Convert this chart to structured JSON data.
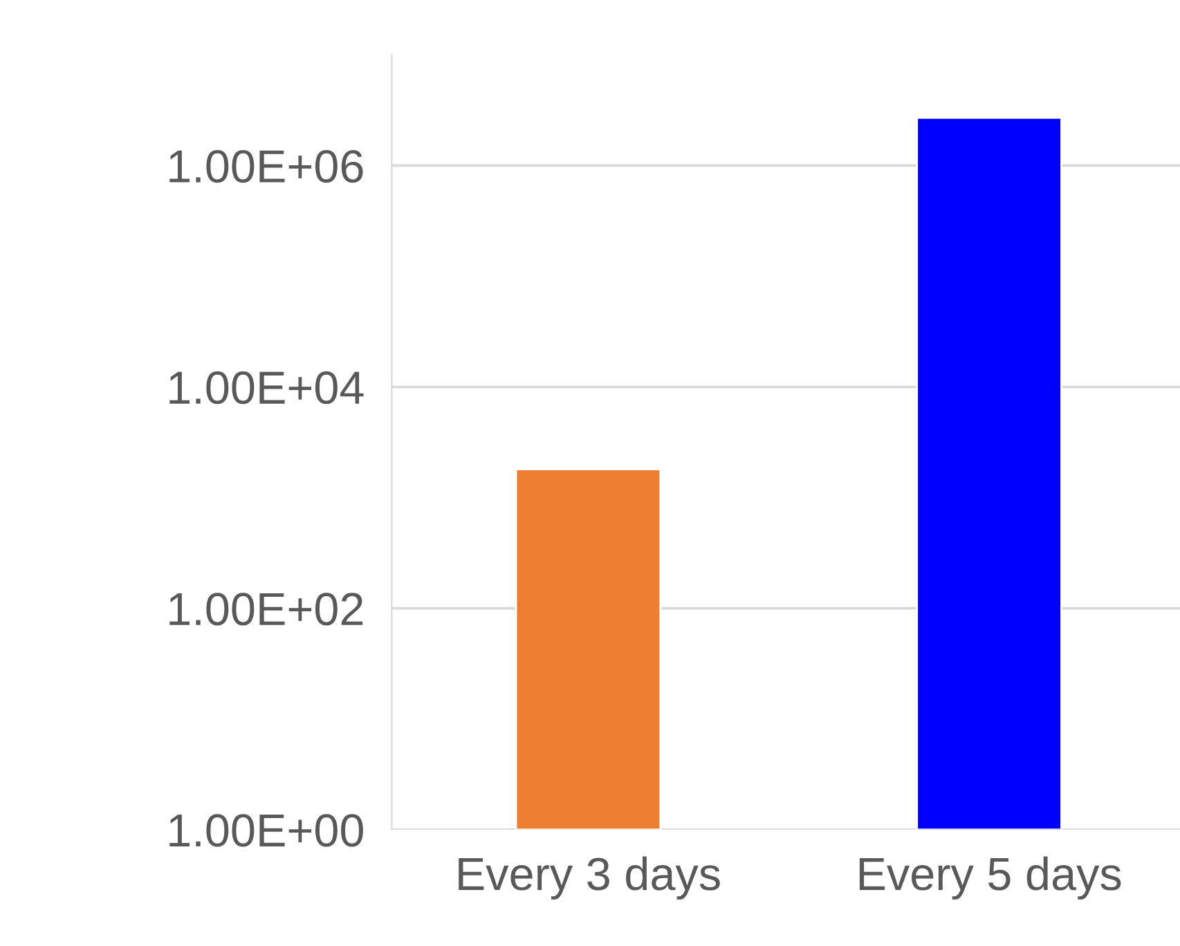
{
  "chart_data": {
    "type": "bar",
    "categories": [
      "Every 3 days",
      "Every 5 days"
    ],
    "values": [
      1800,
      2700000
    ],
    "colors": [
      "#ed7d31",
      "#0000ff"
    ],
    "log": "y",
    "ylim": [
      1,
      10000000
    ],
    "yticks": [
      {
        "value": 1,
        "label": "1.00E+00"
      },
      {
        "value": 100,
        "label": "1.00E+02"
      },
      {
        "value": 10000,
        "label": "1.00E+04"
      },
      {
        "value": 1000000,
        "label": "1.00E+06"
      }
    ],
    "grid": "y",
    "legend": false
  }
}
